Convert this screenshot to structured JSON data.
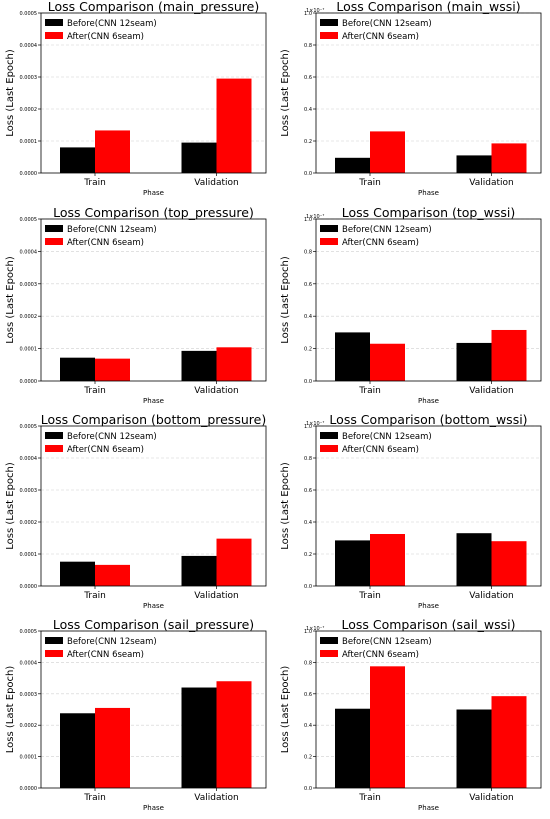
{
  "chart_data": [
    {
      "type": "bar",
      "title": "Loss Comparison (main_pressure)",
      "xlabel": "Phase",
      "ylabel": "Loss (Last Epoch)",
      "categories": [
        "Train",
        "Validation"
      ],
      "series": [
        {
          "name": "Before(CNN 12seam)",
          "values": [
            8e-05,
            9.5e-05
          ]
        },
        {
          "name": "After(CNN 6seam)",
          "values": [
            0.000133,
            0.000295
          ]
        }
      ],
      "ylim": [
        0,
        0.0005
      ],
      "yticks": [
        "0.0000",
        "0.0001",
        "0.0002",
        "0.0003",
        "0.0004",
        "0.0005"
      ],
      "scale_label": "",
      "legend": "top-left",
      "grid": "y-dashed",
      "colors": [
        "#000000",
        "#ff0000"
      ]
    },
    {
      "type": "bar",
      "title": "Loss Comparison (main_wssi)",
      "xlabel": "Phase",
      "ylabel": "Loss (Last Epoch)",
      "categories": [
        "Train",
        "Validation"
      ],
      "series": [
        {
          "name": "Before(CNN 12seam)",
          "values": [
            0.095,
            0.11
          ]
        },
        {
          "name": "After(CNN 6seam)",
          "values": [
            0.26,
            0.185
          ]
        }
      ],
      "ylim": [
        0,
        1.0
      ],
      "yticks": [
        "0.0",
        "0.2",
        "0.4",
        "0.6",
        "0.8",
        "1.0"
      ],
      "scale_label": "1×10⁻⁷",
      "legend": "top-left",
      "grid": "y-dashed",
      "colors": [
        "#000000",
        "#ff0000"
      ]
    },
    {
      "type": "bar",
      "title": "Loss Comparison (top_pressure)",
      "xlabel": "Phase",
      "ylabel": "Loss (Last Epoch)",
      "categories": [
        "Train",
        "Validation"
      ],
      "series": [
        {
          "name": "Before(CNN 12seam)",
          "values": [
            7.2e-05,
            9.3e-05
          ]
        },
        {
          "name": "After(CNN 6seam)",
          "values": [
            6.9e-05,
            0.000104
          ]
        }
      ],
      "ylim": [
        0,
        0.0005
      ],
      "yticks": [
        "0.0000",
        "0.0001",
        "0.0002",
        "0.0003",
        "0.0004",
        "0.0005"
      ],
      "scale_label": "",
      "legend": "top-left",
      "grid": "y-dashed",
      "colors": [
        "#000000",
        "#ff0000"
      ]
    },
    {
      "type": "bar",
      "title": "Loss Comparison (top_wssi)",
      "xlabel": "Phase",
      "ylabel": "Loss (Last Epoch)",
      "categories": [
        "Train",
        "Validation"
      ],
      "series": [
        {
          "name": "Before(CNN 12seam)",
          "values": [
            0.3,
            0.235
          ]
        },
        {
          "name": "After(CNN 6seam)",
          "values": [
            0.23,
            0.315
          ]
        }
      ],
      "ylim": [
        0,
        1.0
      ],
      "yticks": [
        "0.0",
        "0.2",
        "0.4",
        "0.6",
        "0.8",
        "1.0"
      ],
      "scale_label": "1×10⁻⁷",
      "legend": "top-left",
      "grid": "y-dashed",
      "colors": [
        "#000000",
        "#ff0000"
      ]
    },
    {
      "type": "bar",
      "title": "Loss Comparison (bottom_pressure)",
      "xlabel": "Phase",
      "ylabel": "Loss (Last Epoch)",
      "categories": [
        "Train",
        "Validation"
      ],
      "series": [
        {
          "name": "Before(CNN 12seam)",
          "values": [
            7.6e-05,
            9.4e-05
          ]
        },
        {
          "name": "After(CNN 6seam)",
          "values": [
            6.6e-05,
            0.000148
          ]
        }
      ],
      "ylim": [
        0,
        0.0005
      ],
      "yticks": [
        "0.0000",
        "0.0001",
        "0.0002",
        "0.0003",
        "0.0004",
        "0.0005"
      ],
      "scale_label": "",
      "legend": "top-left",
      "grid": "y-dashed",
      "colors": [
        "#000000",
        "#ff0000"
      ]
    },
    {
      "type": "bar",
      "title": "Loss Comparison (bottom_wssi)",
      "xlabel": "Phase",
      "ylabel": "Loss (Last Epoch)",
      "categories": [
        "Train",
        "Validation"
      ],
      "series": [
        {
          "name": "Before(CNN 12seam)",
          "values": [
            0.285,
            0.33
          ]
        },
        {
          "name": "After(CNN 6seam)",
          "values": [
            0.325,
            0.28
          ]
        }
      ],
      "ylim": [
        0,
        1.0
      ],
      "yticks": [
        "0.0",
        "0.2",
        "0.4",
        "0.6",
        "0.8",
        "1.0"
      ],
      "scale_label": "1×10⁻⁷",
      "legend": "top-left",
      "grid": "y-dashed",
      "colors": [
        "#000000",
        "#ff0000"
      ]
    },
    {
      "type": "bar",
      "title": "Loss Comparison (sail_pressure)",
      "xlabel": "Phase",
      "ylabel": "Loss (Last Epoch)",
      "categories": [
        "Train",
        "Validation"
      ],
      "series": [
        {
          "name": "Before(CNN 12seam)",
          "values": [
            0.000238,
            0.00032
          ]
        },
        {
          "name": "After(CNN 6seam)",
          "values": [
            0.000255,
            0.00034
          ]
        }
      ],
      "ylim": [
        0,
        0.0005
      ],
      "yticks": [
        "0.0000",
        "0.0001",
        "0.0002",
        "0.0003",
        "0.0004",
        "0.0005"
      ],
      "scale_label": "",
      "legend": "top-left",
      "grid": "y-dashed",
      "colors": [
        "#000000",
        "#ff0000"
      ]
    },
    {
      "type": "bar",
      "title": "Loss Comparison (sail_wssi)",
      "xlabel": "Phase",
      "ylabel": "Loss (Last Epoch)",
      "categories": [
        "Train",
        "Validation"
      ],
      "series": [
        {
          "name": "Before(CNN 12seam)",
          "values": [
            0.505,
            0.5
          ]
        },
        {
          "name": "After(CNN 6seam)",
          "values": [
            0.775,
            0.585
          ]
        }
      ],
      "ylim": [
        0,
        1.0
      ],
      "yticks": [
        "0.0",
        "0.2",
        "0.4",
        "0.6",
        "0.8",
        "1.0"
      ],
      "scale_label": "1×10⁻⁷",
      "legend": "top-left",
      "grid": "y-dashed",
      "colors": [
        "#000000",
        "#ff0000"
      ]
    }
  ]
}
